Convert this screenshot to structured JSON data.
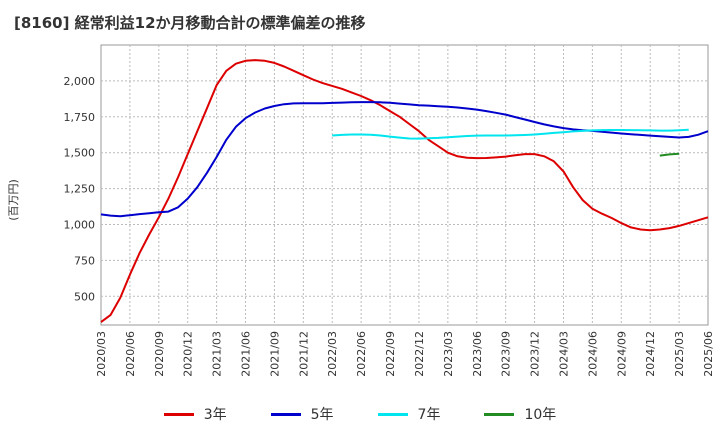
{
  "chart_data": {
    "type": "line",
    "title": "[8160]  経常利益12か月移動合計の標準偏差の推移",
    "ylabel": "(百万円)",
    "xlabel": "",
    "ylim": [
      300,
      2250
    ],
    "yticks": [
      500,
      750,
      1000,
      1250,
      1500,
      1750,
      2000
    ],
    "ytick_labels": [
      "500",
      "750",
      "1,000",
      "1,250",
      "1,500",
      "1,750",
      "2,000"
    ],
    "x_start": "2020-03",
    "x_end": "2025-06",
    "xtick_labels": [
      "2020/03",
      "2020/06",
      "2020/09",
      "2020/12",
      "2021/03",
      "2021/06",
      "2021/09",
      "2021/12",
      "2022/03",
      "2022/06",
      "2022/09",
      "2022/12",
      "2023/03",
      "2023/06",
      "2023/09",
      "2023/12",
      "2024/03",
      "2024/06",
      "2024/09",
      "2024/12",
      "2025/03",
      "2025/06"
    ],
    "grid": true,
    "legend_position": "bottom",
    "series": [
      {
        "name": "3年",
        "color": "#dd0000",
        "start": "2020-03",
        "values": [
          320,
          370,
          490,
          650,
          800,
          930,
          1050,
          1180,
          1330,
          1490,
          1650,
          1810,
          1970,
          2070,
          2120,
          2140,
          2145,
          2140,
          2125,
          2100,
          2070,
          2040,
          2010,
          1985,
          1965,
          1945,
          1920,
          1895,
          1865,
          1830,
          1790,
          1750,
          1700,
          1650,
          1590,
          1545,
          1500,
          1475,
          1465,
          1462,
          1463,
          1467,
          1473,
          1482,
          1490,
          1490,
          1475,
          1440,
          1370,
          1260,
          1170,
          1110,
          1075,
          1045,
          1010,
          980,
          965,
          960,
          965,
          975,
          990,
          1010,
          1030,
          1050
        ]
      },
      {
        "name": "5年",
        "color": "#0000cc",
        "start": "2020-03",
        "values": [
          1070,
          1062,
          1058,
          1065,
          1072,
          1078,
          1085,
          1090,
          1120,
          1180,
          1260,
          1360,
          1470,
          1590,
          1680,
          1740,
          1780,
          1808,
          1825,
          1838,
          1843,
          1845,
          1845,
          1845,
          1847,
          1849,
          1851,
          1852,
          1852,
          1851,
          1848,
          1842,
          1836,
          1831,
          1828,
          1824,
          1820,
          1815,
          1808,
          1800,
          1790,
          1778,
          1765,
          1748,
          1731,
          1714,
          1697,
          1683,
          1671,
          1662,
          1656,
          1652,
          1646,
          1640,
          1634,
          1629,
          1624,
          1619,
          1614,
          1610,
          1606,
          1610,
          1625,
          1650
        ]
      },
      {
        "name": "7年",
        "color": "#00e5ee",
        "start": "2022-03",
        "values": [
          1620,
          1624,
          1627,
          1627,
          1625,
          1620,
          1612,
          1605,
          1599,
          1598,
          1600,
          1603,
          1608,
          1612,
          1616,
          1619,
          1620,
          1620,
          1620,
          1621,
          1623,
          1627,
          1632,
          1638,
          1643,
          1648,
          1652,
          1655,
          1657,
          1658,
          1658,
          1657,
          1656,
          1655,
          1654,
          1654,
          1656,
          1660
        ]
      },
      {
        "name": "10年",
        "color": "#228b22",
        "start": "2025-01",
        "values": [
          1480,
          1488,
          1493
        ]
      }
    ]
  }
}
